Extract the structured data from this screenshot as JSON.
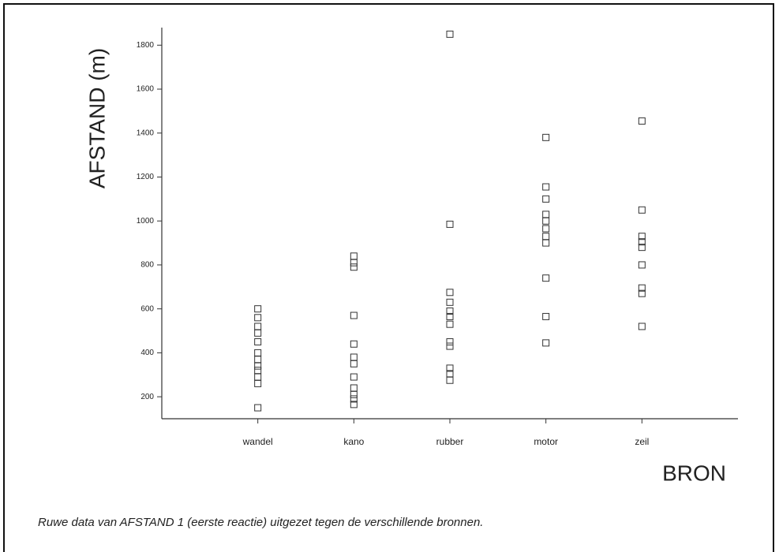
{
  "chart_data": {
    "type": "strip",
    "y_label": "AFSTAND (m)",
    "x_label": "BRON",
    "caption": "Ruwe data van AFSTAND 1 (eerste reactie) uitgezet tegen de verschillende bronnen.",
    "categories": [
      "wandel",
      "kano",
      "rubber",
      "motor",
      "zeil"
    ],
    "values": [
      [
        600,
        560,
        520,
        490,
        450,
        400,
        370,
        340,
        320,
        290,
        260,
        150
      ],
      [
        840,
        810,
        790,
        570,
        440,
        380,
        350,
        290,
        240,
        210,
        190,
        165
      ],
      [
        1850,
        985,
        675,
        630,
        590,
        565,
        530,
        450,
        430,
        330,
        305,
        275
      ],
      [
        1380,
        1155,
        1100,
        1030,
        1000,
        965,
        930,
        900,
        740,
        565,
        445
      ],
      [
        1455,
        1050,
        930,
        905,
        880,
        800,
        695,
        670,
        520
      ]
    ],
    "ylim": [
      100,
      1880
    ],
    "yticks": [
      200,
      400,
      600,
      800,
      1000,
      1200,
      1400,
      1600,
      1800
    ],
    "color": "#333333"
  }
}
